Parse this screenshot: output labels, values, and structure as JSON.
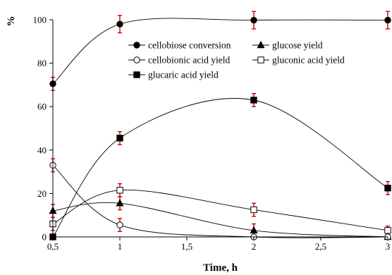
{
  "chart_data": {
    "type": "scatter",
    "title": "",
    "xlabel": "Time, h",
    "ylabel": "%",
    "xlim": [
      0.5,
      3
    ],
    "ylim": [
      0,
      100
    ],
    "x_ticks": [
      0.5,
      1,
      1.5,
      2,
      2.5,
      3
    ],
    "x_tick_labels": [
      "0,5",
      "1",
      "1,5",
      "2",
      "2,5",
      "3"
    ],
    "y_ticks": [
      0,
      20,
      40,
      60,
      80,
      100
    ],
    "y_tick_labels": [
      "0",
      "20",
      "40",
      "60",
      "80",
      "100"
    ],
    "grid": false,
    "legend_position": "top-right",
    "error_bar_color": "#cc0000",
    "series": [
      {
        "name": "cellobiose conversion",
        "marker": "filled-circle",
        "x": [
          0.5,
          1,
          2,
          3
        ],
        "y": [
          70.5,
          98,
          99.8,
          99.8
        ],
        "yerr": [
          3,
          4,
          4,
          4
        ]
      },
      {
        "name": "glucose yield",
        "marker": "filled-triangle",
        "x": [
          0.5,
          1,
          2,
          3
        ],
        "y": [
          12,
          15.5,
          3,
          0
        ],
        "yerr": [
          3,
          3,
          3,
          0
        ]
      },
      {
        "name": "cellobionic acid yield",
        "marker": "open-circle",
        "x": [
          0.5,
          1,
          2,
          3
        ],
        "y": [
          33,
          5.5,
          0,
          0
        ],
        "yerr": [
          3,
          3,
          0,
          0
        ]
      },
      {
        "name": "gluconic acid yield",
        "marker": "open-square",
        "x": [
          0.5,
          1,
          2,
          3
        ],
        "y": [
          6,
          21.5,
          12.5,
          3
        ],
        "yerr": [
          3,
          3,
          3,
          2
        ]
      },
      {
        "name": "glucaric acid yield",
        "marker": "filled-square",
        "x": [
          0.5,
          1,
          2,
          3
        ],
        "y": [
          0,
          45.5,
          63,
          22.5
        ],
        "yerr": [
          0,
          3,
          3,
          3
        ]
      }
    ]
  }
}
